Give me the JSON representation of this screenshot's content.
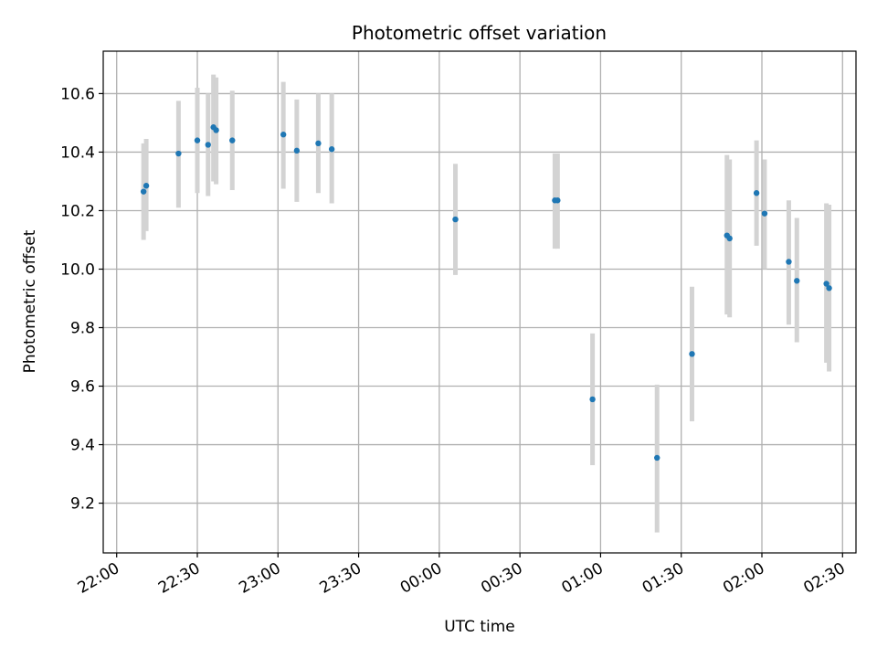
{
  "chart_data": {
    "type": "scatter",
    "title": "Photometric offset variation",
    "xlabel": "UTC time",
    "ylabel": "Photometric offset",
    "xlim_minutes": [
      -5,
      275
    ],
    "ylim": [
      9.03,
      10.745
    ],
    "grid": true,
    "x_ticks": [
      {
        "label": "22:00",
        "minutes": 0
      },
      {
        "label": "22:30",
        "minutes": 30
      },
      {
        "label": "23:00",
        "minutes": 60
      },
      {
        "label": "23:30",
        "minutes": 90
      },
      {
        "label": "00:00",
        "minutes": 120
      },
      {
        "label": "00:30",
        "minutes": 150
      },
      {
        "label": "01:00",
        "minutes": 180
      },
      {
        "label": "01:30",
        "minutes": 210
      },
      {
        "label": "02:00",
        "minutes": 240
      },
      {
        "label": "02:30",
        "minutes": 270
      }
    ],
    "y_ticks": [
      {
        "label": "9.2",
        "value": 9.2
      },
      {
        "label": "9.4",
        "value": 9.4
      },
      {
        "label": "9.6",
        "value": 9.6
      },
      {
        "label": "9.8",
        "value": 9.8
      },
      {
        "label": "10.0",
        "value": 10.0
      },
      {
        "label": "10.2",
        "value": 10.2
      },
      {
        "label": "10.4",
        "value": 10.4
      },
      {
        "label": "10.6",
        "value": 10.6
      }
    ],
    "points": [
      {
        "time": "22:10",
        "y": 10.265,
        "lo": 10.1,
        "hi": 10.43
      },
      {
        "time": "22:11",
        "y": 10.285,
        "lo": 10.13,
        "hi": 10.445
      },
      {
        "time": "22:23",
        "y": 10.395,
        "lo": 10.21,
        "hi": 10.575
      },
      {
        "time": "22:30",
        "y": 10.44,
        "lo": 10.26,
        "hi": 10.62
      },
      {
        "time": "22:34",
        "y": 10.425,
        "lo": 10.25,
        "hi": 10.6
      },
      {
        "time": "22:36",
        "y": 10.485,
        "lo": 10.3,
        "hi": 10.665
      },
      {
        "time": "22:37",
        "y": 10.475,
        "lo": 10.29,
        "hi": 10.655
      },
      {
        "time": "22:43",
        "y": 10.44,
        "lo": 10.27,
        "hi": 10.61
      },
      {
        "time": "23:02",
        "y": 10.46,
        "lo": 10.275,
        "hi": 10.64
      },
      {
        "time": "23:07",
        "y": 10.405,
        "lo": 10.23,
        "hi": 10.58
      },
      {
        "time": "23:15",
        "y": 10.43,
        "lo": 10.26,
        "hi": 10.6
      },
      {
        "time": "23:20",
        "y": 10.41,
        "lo": 10.225,
        "hi": 10.6
      },
      {
        "time": "00:06",
        "y": 10.17,
        "lo": 9.98,
        "hi": 10.36
      },
      {
        "time": "00:43",
        "y": 10.235,
        "lo": 10.07,
        "hi": 10.395
      },
      {
        "time": "00:44",
        "y": 10.235,
        "lo": 10.07,
        "hi": 10.395
      },
      {
        "time": "00:57",
        "y": 9.555,
        "lo": 9.33,
        "hi": 9.78
      },
      {
        "time": "01:21",
        "y": 9.355,
        "lo": 9.1,
        "hi": 9.605
      },
      {
        "time": "01:34",
        "y": 9.71,
        "lo": 9.48,
        "hi": 9.94
      },
      {
        "time": "01:47",
        "y": 10.115,
        "lo": 9.845,
        "hi": 10.39
      },
      {
        "time": "01:48",
        "y": 10.105,
        "lo": 9.835,
        "hi": 10.375
      },
      {
        "time": "01:58",
        "y": 10.26,
        "lo": 10.08,
        "hi": 10.44
      },
      {
        "time": "02:01",
        "y": 10.19,
        "lo": 10.0,
        "hi": 10.375
      },
      {
        "time": "02:10",
        "y": 10.025,
        "lo": 9.81,
        "hi": 10.235
      },
      {
        "time": "02:13",
        "y": 9.96,
        "lo": 9.75,
        "hi": 10.175
      },
      {
        "time": "02:24",
        "y": 9.95,
        "lo": 9.68,
        "hi": 10.225
      },
      {
        "time": "02:25",
        "y": 9.935,
        "lo": 9.65,
        "hi": 10.22
      }
    ]
  }
}
